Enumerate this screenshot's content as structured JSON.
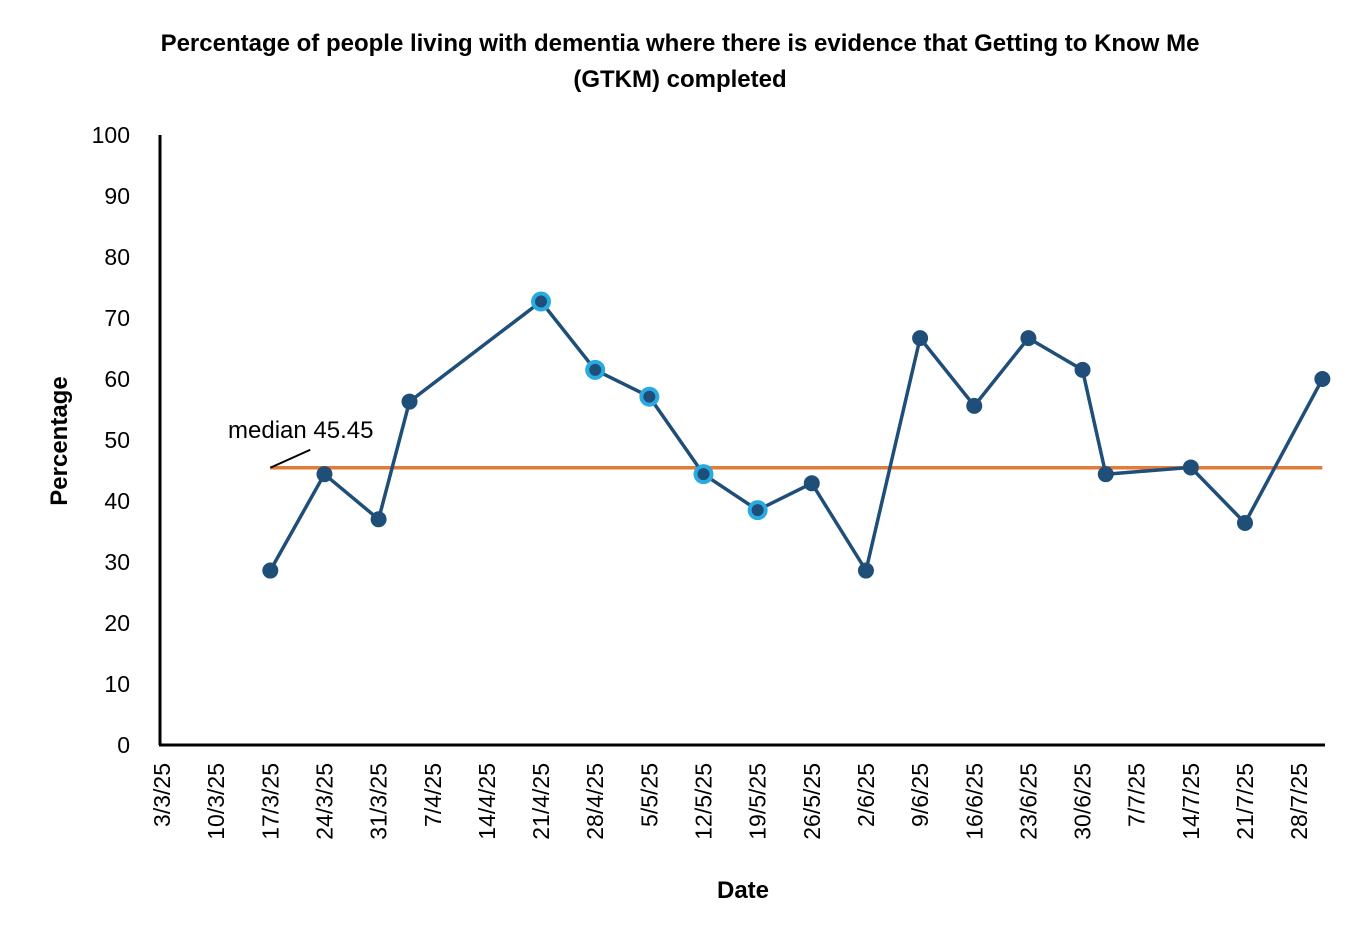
{
  "chart_data": {
    "type": "line",
    "title": "Percentage of people living with dementia where there is evidence that Getting to Know Me (GTKM) completed",
    "xlabel": "Date",
    "ylabel": "Percentage",
    "ylim": [
      0,
      100
    ],
    "yticks": [
      0,
      10,
      20,
      30,
      40,
      50,
      60,
      70,
      80,
      90,
      100
    ],
    "categories": [
      "3/3/25",
      "10/3/25",
      "17/3/25",
      "24/3/25",
      "31/3/25",
      "7/4/25",
      "14/4/25",
      "21/4/25",
      "28/4/25",
      "5/5/25",
      "12/5/25",
      "19/5/25",
      "26/5/25",
      "2/6/25",
      "9/6/25",
      "16/6/25",
      "23/6/25",
      "30/6/25",
      "7/7/25",
      "14/7/25",
      "21/7/25",
      "28/7/25"
    ],
    "series": [
      {
        "points": [
          {
            "x": "17/3/25",
            "y": 28.6
          },
          {
            "x": "24/3/25",
            "y": 44.4
          },
          {
            "x": "31/3/25",
            "y": 37.0
          },
          {
            "x": "4/4/25",
            "y": 56.3
          },
          {
            "x": "21/4/25",
            "y": 72.7,
            "highlight": true
          },
          {
            "x": "28/4/25",
            "y": 61.5,
            "highlight": true
          },
          {
            "x": "5/5/25",
            "y": 57.1,
            "highlight": true
          },
          {
            "x": "12/5/25",
            "y": 44.4,
            "highlight": true
          },
          {
            "x": "19/5/25",
            "y": 38.5,
            "highlight": true
          },
          {
            "x": "26/5/25",
            "y": 42.9
          },
          {
            "x": "2/6/25",
            "y": 28.6
          },
          {
            "x": "9/6/25",
            "y": 66.7
          },
          {
            "x": "16/6/25",
            "y": 55.6
          },
          {
            "x": "23/6/25",
            "y": 66.7
          },
          {
            "x": "30/6/25",
            "y": 61.5
          },
          {
            "x": "3/7/25",
            "y": 44.4
          },
          {
            "x": "14/7/25",
            "y": 45.5
          },
          {
            "x": "21/7/25",
            "y": 36.4
          },
          {
            "x": "31/7/25",
            "y": 60.0
          }
        ]
      }
    ],
    "median": {
      "value": 45.45,
      "label": "median 45.45",
      "start": "17/3/25",
      "end": "31/7/25"
    },
    "grid": false,
    "colors": {
      "line": "#1f4e79",
      "marker": "#1f4e79",
      "highlight_ring": "#29abe2",
      "median": "#e07b39",
      "axis": "#000000"
    }
  }
}
